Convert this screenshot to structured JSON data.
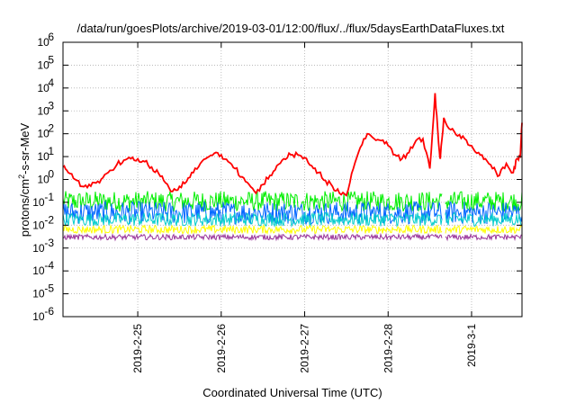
{
  "chart_data": {
    "type": "line",
    "title": "/data/run/goesPlots/archive/2019-03-01/12:00/flux/../flux/5daysEarthDataFluxes.txt",
    "xlabel": "Coordinated Universal Time (UTC)",
    "ylabel": "protons/cm2-s-sr-MeV",
    "y_scale": "log",
    "ylim": [
      1e-06,
      1000000.0
    ],
    "y_ticks": [
      {
        "base": "10",
        "exp": "-6",
        "value": 1e-06
      },
      {
        "base": "10",
        "exp": "-5",
        "value": 1e-05
      },
      {
        "base": "10",
        "exp": "-4",
        "value": 0.0001
      },
      {
        "base": "10",
        "exp": "-3",
        "value": 0.001
      },
      {
        "base": "10",
        "exp": "-2",
        "value": 0.01
      },
      {
        "base": "10",
        "exp": "-1",
        "value": 0.1
      },
      {
        "base": "10",
        "exp": "0",
        "value": 1
      },
      {
        "base": "10",
        "exp": "1",
        "value": 10
      },
      {
        "base": "10",
        "exp": "2",
        "value": 100
      },
      {
        "base": "10",
        "exp": "3",
        "value": 1000
      },
      {
        "base": "10",
        "exp": "4",
        "value": 10000
      },
      {
        "base": "10",
        "exp": "5",
        "value": 100000
      },
      {
        "base": "10",
        "exp": "6",
        "value": 1000000
      }
    ],
    "xlim": [
      "2019-02-24T02:30",
      "2019-03-01T14:30"
    ],
    "x_ticks": [
      {
        "label": "2019-2-25",
        "value": "2019-02-25T00:00"
      },
      {
        "label": "2019-2-26",
        "value": "2019-02-26T00:00"
      },
      {
        "label": "2019-2-27",
        "value": "2019-02-27T00:00"
      },
      {
        "label": "2019-2-28",
        "value": "2019-02-28T00:00"
      },
      {
        "label": "2019-3-1",
        "value": "2019-03-01T00:00"
      }
    ],
    "grid": true,
    "series": [
      {
        "color": "#ff0000",
        "style": "line",
        "x": [
          "2019-02-24T02:30",
          "2019-02-24T04:00",
          "2019-02-24T06:00",
          "2019-02-24T08:00",
          "2019-02-24T10:00",
          "2019-02-24T12:00",
          "2019-02-24T14:00",
          "2019-02-24T16:00",
          "2019-02-24T18:00",
          "2019-02-24T20:00",
          "2019-02-24T22:00",
          "2019-02-25T00:00",
          "2019-02-25T02:00",
          "2019-02-25T04:00",
          "2019-02-25T06:00",
          "2019-02-25T08:00",
          "2019-02-25T10:00",
          "2019-02-25T12:00",
          "2019-02-25T14:00",
          "2019-02-25T16:00",
          "2019-02-25T18:00",
          "2019-02-25T20:00",
          "2019-02-25T22:00",
          "2019-02-26T00:00",
          "2019-02-26T02:00",
          "2019-02-26T04:00",
          "2019-02-26T06:00",
          "2019-02-26T08:00",
          "2019-02-26T10:00",
          "2019-02-26T12:00",
          "2019-02-26T14:00",
          "2019-02-26T16:00",
          "2019-02-26T18:00",
          "2019-02-26T20:00",
          "2019-02-26T22:00",
          "2019-02-27T00:00",
          "2019-02-27T02:00",
          "2019-02-27T04:00",
          "2019-02-27T06:00",
          "2019-02-27T08:00",
          "2019-02-27T10:00",
          "2019-02-27T12:00",
          "2019-02-27T14:00",
          "2019-02-27T16:00",
          "2019-02-27T18:00",
          "2019-02-27T20:00",
          "2019-02-27T22:00",
          "2019-02-28T00:00",
          "2019-02-28T02:00",
          "2019-02-28T04:00",
          "2019-02-28T06:00",
          "2019-02-28T08:00",
          "2019-02-28T10:00",
          "2019-02-28T12:00",
          "2019-02-28T13:30",
          "2019-02-28T14:30",
          "2019-02-28T15:00",
          "2019-02-28T16:00",
          "2019-02-28T18:00",
          "2019-02-28T20:00",
          "2019-02-28T22:00",
          "2019-03-01T00:00",
          "2019-03-01T02:00",
          "2019-03-01T04:00",
          "2019-03-01T06:00",
          "2019-03-01T08:00",
          "2019-03-01T10:00",
          "2019-03-01T12:00",
          "2019-03-01T13:00",
          "2019-03-01T14:00",
          "2019-03-01T14:30"
        ],
        "values": [
          3.5,
          2.0,
          1.0,
          0.5,
          0.6,
          0.7,
          1.2,
          2.5,
          4.5,
          7,
          8,
          8,
          6,
          3.5,
          1.8,
          0.7,
          0.3,
          0.5,
          0.8,
          2,
          5,
          9,
          14,
          12,
          6,
          3,
          1.3,
          0.6,
          0.25,
          0.6,
          1.5,
          4,
          8,
          12,
          12,
          9,
          4,
          2,
          0.9,
          0.5,
          0.25,
          0.2,
          3,
          25,
          100,
          60,
          50,
          30,
          12,
          8,
          15,
          50,
          60,
          3,
          6000,
          40,
          8,
          500,
          150,
          80,
          60,
          30,
          15,
          8,
          3,
          1.5,
          5,
          2,
          8,
          10,
          300
        ]
      },
      {
        "color": "#00ee00",
        "style": "noisy-band",
        "center": 0.11,
        "amplitude": 0.45
      },
      {
        "color": "#0066ff",
        "style": "noisy-band",
        "center": 0.035,
        "amplitude": 0.5
      },
      {
        "color": "#00cccc",
        "style": "noisy-band",
        "center": 0.018,
        "amplitude": 0.3
      },
      {
        "color": "#ffff00",
        "style": "noisy-band",
        "center": 0.0065,
        "amplitude": 0.18
      },
      {
        "color": "#993399",
        "style": "noisy-band",
        "center": 0.003,
        "amplitude": 0.12
      }
    ],
    "gaps": [
      {
        "from": "2019-02-28T15:30",
        "to": "2019-02-28T16:15",
        "series_styles": [
          "noisy-band"
        ]
      }
    ]
  }
}
